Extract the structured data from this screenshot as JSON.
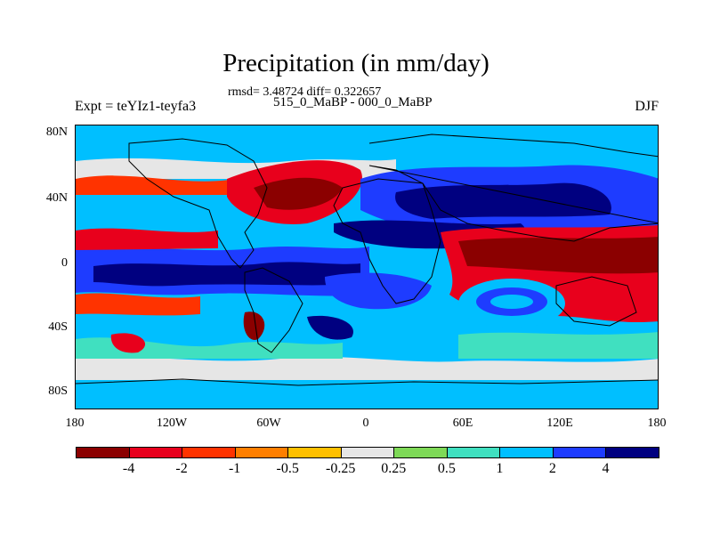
{
  "title": "Precipitation (in mm/day)",
  "stats_line": "rmsd= 3.48724 diff= 0.322657",
  "case_line": "515_0_MaBP - 000_0_MaBP",
  "experiment_label": "Expt = teYIz1-teyfa3",
  "season": "DJF",
  "map": {
    "lat_ticks": [
      "80N",
      "40N",
      "0",
      "40S",
      "80S"
    ],
    "lon_ticks": [
      "180",
      "120W",
      "60W",
      "0",
      "60E",
      "120E",
      "180"
    ],
    "palette": {
      "dark_red": "#8b0000",
      "red": "#e8001c",
      "orange_red": "#ff3300",
      "orange": "#ff7f00",
      "amber": "#ffc000",
      "neutral": "#e6e6e6",
      "light_green": "#7ed957",
      "aqua": "#40e0c0",
      "light_blue": "#00bfff",
      "blue": "#1e3cff",
      "navy": "#000080"
    }
  },
  "colorbar": {
    "labels": [
      "-4",
      "-2",
      "-1",
      "-0.5",
      "-0.25",
      "0.25",
      "0.5",
      "1",
      "2",
      "4"
    ],
    "colors": [
      "#8b0000",
      "#e8001c",
      "#ff3300",
      "#ff7f00",
      "#ffc000",
      "#e6e6e6",
      "#7ed957",
      "#40e0c0",
      "#00bfff",
      "#1e3cff",
      "#000080"
    ]
  }
}
